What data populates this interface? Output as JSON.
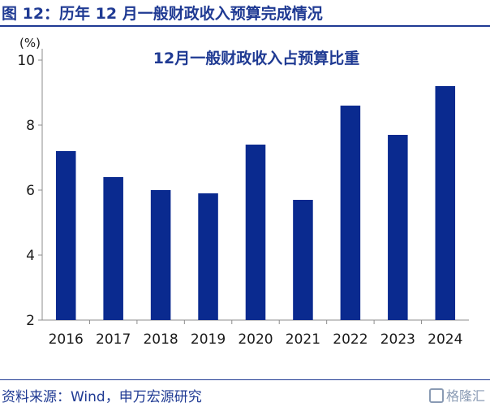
{
  "figure": {
    "title": "图 12：历年 12 月一般财政收入预算完成情况",
    "source": "资料来源：Wind，申万宏源研究",
    "watermark": "格隆汇"
  },
  "chart_data": {
    "type": "bar",
    "title": "12月一般财政收入占预算比重",
    "ylabel": "(%)",
    "xlabel": "",
    "categories": [
      "2016",
      "2017",
      "2018",
      "2019",
      "2020",
      "2021",
      "2022",
      "2023",
      "2024"
    ],
    "values": [
      7.2,
      6.4,
      6.0,
      5.9,
      7.4,
      5.7,
      8.6,
      7.7,
      9.2
    ],
    "ylim": [
      2,
      10
    ],
    "yticks": [
      2,
      4,
      6,
      8,
      10
    ],
    "grid": false,
    "legend": "none",
    "colors": {
      "bar": "#0a2a8f",
      "axis": "#8c8c8c",
      "title": "#1f3a93"
    }
  }
}
